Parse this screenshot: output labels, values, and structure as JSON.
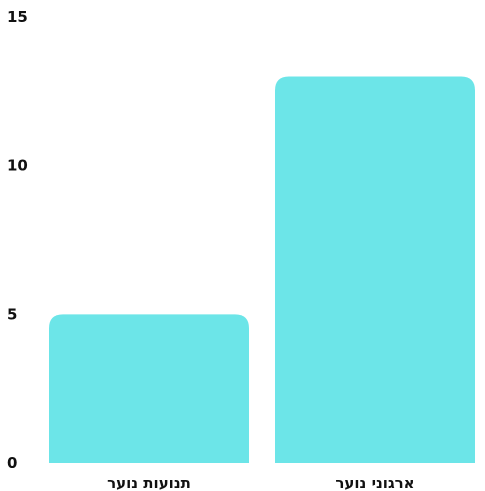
{
  "chart_data": {
    "type": "bar",
    "categories": [
      "תנועות נוער",
      "ארגוני נוער"
    ],
    "values": [
      5,
      13
    ],
    "ylim": [
      0,
      15
    ],
    "yticks": [
      0,
      5,
      10,
      15
    ],
    "ytick_labels": [
      "0",
      "5",
      "10",
      "15"
    ],
    "title": "",
    "xlabel": "",
    "ylabel": "",
    "grid": false,
    "legend": "none",
    "bar_color": "#6ce5e8",
    "text_color": "#111111"
  }
}
